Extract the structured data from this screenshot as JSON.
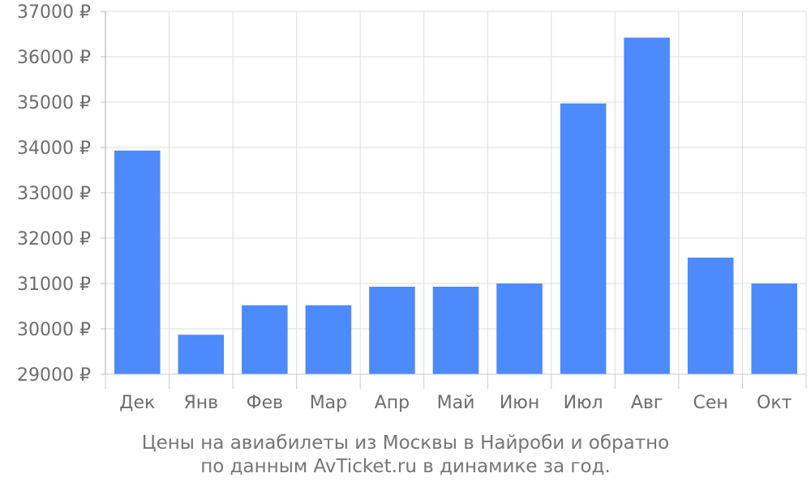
{
  "chart_data": {
    "type": "bar",
    "categories": [
      "Дек",
      "Янв",
      "Фев",
      "Мар",
      "Апр",
      "Май",
      "Июн",
      "Июл",
      "Авг",
      "Сен",
      "Окт"
    ],
    "values": [
      33930,
      29870,
      30520,
      30520,
      30930,
      30930,
      31000,
      34970,
      36420,
      31570,
      31000
    ],
    "ylim": [
      29000,
      37000
    ],
    "yticks": [
      29000,
      30000,
      31000,
      32000,
      33000,
      34000,
      35000,
      36000,
      37000
    ],
    "ytick_suffix": " ₽",
    "grid": true,
    "bar_color": "#4d8afb",
    "caption_lines": [
      "Цены на авиабилеты из Москвы в Найроби и обратно",
      "по данным AvTicket.ru в динамике за год."
    ]
  }
}
